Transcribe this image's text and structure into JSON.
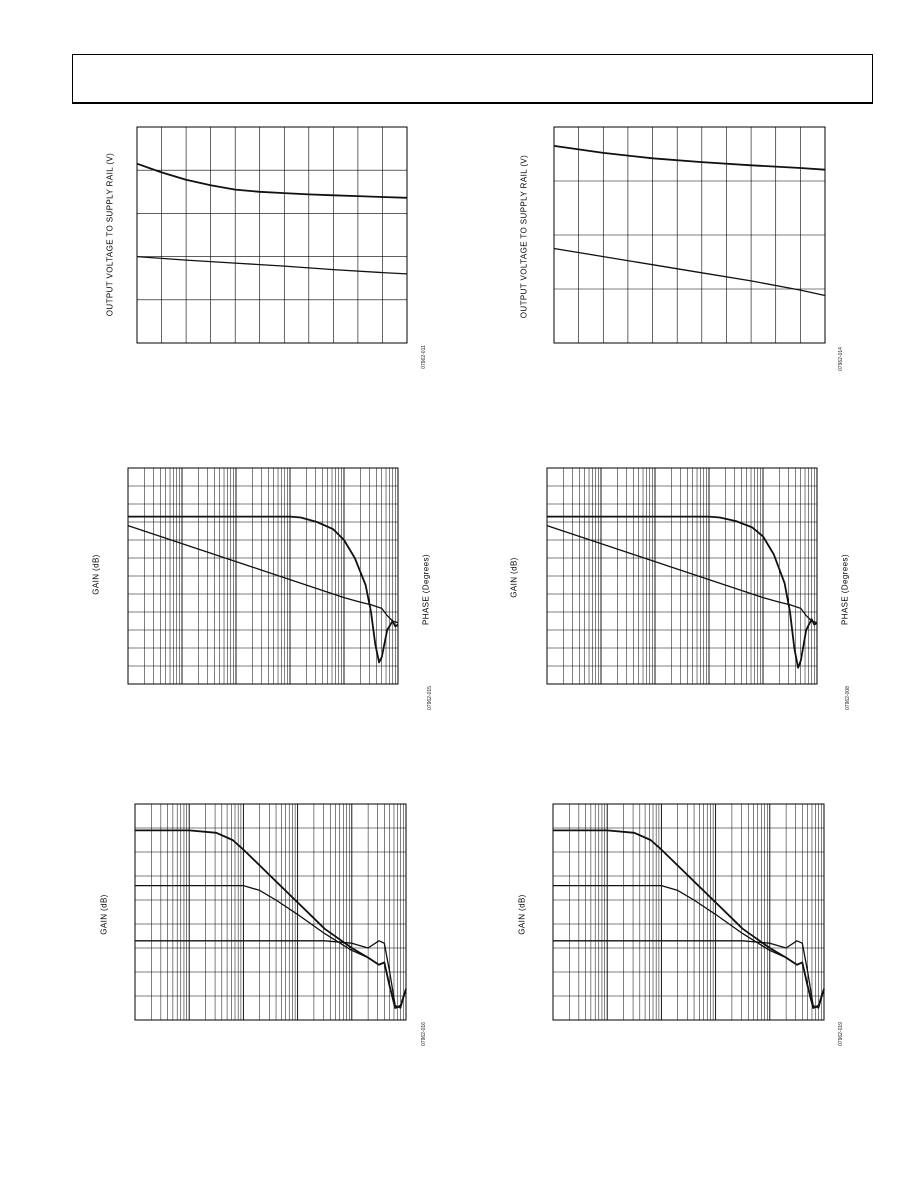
{
  "figures": [
    {
      "id": "fig-1",
      "ylabel": "OUTPUT VOLTAGE TO SUPPLY RAIL (V)",
      "ylabel2": "",
      "fig_id": "07962-011"
    },
    {
      "id": "fig-2",
      "ylabel": "OUTPUT VOLTAGE TO SUPPLY RAIL (V)",
      "ylabel2": "",
      "fig_id": "07962-014"
    },
    {
      "id": "fig-3",
      "ylabel": "GAIN (dB)",
      "ylabel2": "PHASE (Degrees)",
      "fig_id": "07962-015"
    },
    {
      "id": "fig-4",
      "ylabel": "GAIN (dB)",
      "ylabel2": "PHASE (Degrees)",
      "fig_id": "07962-008"
    },
    {
      "id": "fig-5",
      "ylabel": "GAIN (dB)",
      "ylabel2": "",
      "fig_id": "07962-016"
    },
    {
      "id": "fig-6",
      "ylabel": "GAIN (dB)",
      "ylabel2": "",
      "fig_id": "07962-019"
    }
  ],
  "chart_data": [
    {
      "type": "line",
      "xscale": "linear",
      "x_divisions": 11,
      "y_divisions": 5,
      "xlim": [
        0,
        11
      ],
      "ylim": [
        0,
        5
      ],
      "series": [
        {
          "x": [
            0,
            1,
            2,
            3,
            4,
            5,
            6,
            7,
            8,
            9,
            10,
            11
          ],
          "y": [
            4.15,
            3.95,
            3.78,
            3.65,
            3.55,
            3.5,
            3.47,
            3.44,
            3.42,
            3.4,
            3.38,
            3.36
          ]
        },
        {
          "x": [
            0,
            2,
            4,
            6,
            8,
            10,
            11
          ],
          "y": [
            2.0,
            1.92,
            1.85,
            1.78,
            1.7,
            1.63,
            1.6
          ]
        }
      ]
    },
    {
      "type": "line",
      "xscale": "linear",
      "x_divisions": 11,
      "y_divisions": 4,
      "xlim": [
        0,
        11
      ],
      "ylim": [
        0,
        4
      ],
      "series": [
        {
          "x": [
            0,
            2,
            4,
            6,
            8,
            10,
            11
          ],
          "y": [
            3.65,
            3.52,
            3.42,
            3.35,
            3.29,
            3.24,
            3.21
          ]
        },
        {
          "x": [
            0,
            2,
            4,
            6,
            8,
            10,
            11
          ],
          "y": [
            1.75,
            1.6,
            1.45,
            1.3,
            1.15,
            0.98,
            0.88
          ]
        }
      ]
    },
    {
      "type": "line",
      "xscale": "log",
      "decades": 5,
      "y_divisions": 12,
      "xlim": [
        0,
        5
      ],
      "ylim": [
        0,
        12
      ],
      "series": [
        {
          "x": [
            0,
            1,
            2,
            3,
            3.2,
            3.5,
            3.8,
            4.0,
            4.2,
            4.4,
            4.5,
            4.58,
            4.65,
            4.7,
            4.8,
            4.9,
            4.95,
            5.0
          ],
          "y": [
            9.3,
            9.3,
            9.3,
            9.3,
            9.25,
            9.0,
            8.6,
            8.0,
            7.0,
            5.5,
            4.0,
            2.2,
            1.2,
            1.5,
            3.0,
            3.5,
            3.2,
            3.3
          ]
        },
        {
          "x": [
            0,
            0.5,
            1,
            1.5,
            2,
            2.5,
            3,
            3.5,
            4,
            4.3,
            4.5,
            4.7,
            4.8,
            4.9,
            5.0
          ],
          "y": [
            8.8,
            8.3,
            7.8,
            7.3,
            6.8,
            6.3,
            5.8,
            5.3,
            4.8,
            4.55,
            4.4,
            4.2,
            3.8,
            3.5,
            3.4
          ]
        }
      ]
    },
    {
      "type": "line",
      "xscale": "log",
      "decades": 5,
      "y_divisions": 12,
      "xlim": [
        0,
        5
      ],
      "ylim": [
        0,
        12
      ],
      "series": [
        {
          "x": [
            0,
            1,
            2,
            3,
            3.2,
            3.5,
            3.8,
            4.0,
            4.2,
            4.4,
            4.5,
            4.58,
            4.65,
            4.7,
            4.8,
            4.9,
            4.95,
            5.0
          ],
          "y": [
            9.3,
            9.3,
            9.3,
            9.3,
            9.25,
            9.05,
            8.7,
            8.2,
            7.2,
            5.6,
            4.0,
            2.0,
            0.9,
            1.3,
            3.0,
            3.6,
            3.3,
            3.4
          ]
        },
        {
          "x": [
            0,
            0.5,
            1,
            1.5,
            2,
            2.5,
            3,
            3.5,
            4,
            4.3,
            4.5,
            4.7,
            4.8,
            4.9,
            5.0
          ],
          "y": [
            8.8,
            8.3,
            7.8,
            7.3,
            6.8,
            6.3,
            5.8,
            5.3,
            4.8,
            4.55,
            4.4,
            4.2,
            3.8,
            3.5,
            3.4
          ]
        }
      ]
    },
    {
      "type": "line",
      "xscale": "log",
      "decades": 5,
      "y_divisions": 9,
      "xlim": [
        0,
        5
      ],
      "ylim": [
        0,
        9
      ],
      "series": [
        {
          "x": [
            0,
            1,
            1.5,
            1.8,
            2.0,
            2.5,
            3.0,
            3.5,
            4.0,
            4.3,
            4.5,
            4.6,
            4.7,
            4.8,
            4.9,
            5.0
          ],
          "y": [
            7.9,
            7.9,
            7.8,
            7.5,
            7.1,
            6.0,
            4.9,
            3.8,
            3.0,
            2.6,
            2.3,
            2.4,
            1.4,
            0.5,
            0.6,
            1.3
          ]
        },
        {
          "x": [
            0,
            1,
            2.0,
            2.3,
            2.6,
            3.0,
            3.5,
            4.0,
            4.3,
            4.5,
            4.6,
            4.7,
            4.8,
            4.9,
            5.0
          ],
          "y": [
            5.6,
            5.6,
            5.6,
            5.4,
            5.0,
            4.4,
            3.6,
            2.9,
            2.6,
            2.3,
            2.4,
            1.4,
            0.5,
            0.6,
            1.3
          ]
        },
        {
          "x": [
            0,
            1,
            2,
            3,
            3.5,
            4.0,
            4.3,
            4.5,
            4.6,
            4.7,
            4.8,
            4.9,
            5.0
          ],
          "y": [
            3.3,
            3.3,
            3.3,
            3.3,
            3.3,
            3.2,
            3.0,
            3.3,
            3.2,
            2.0,
            0.6,
            0.5,
            1.3
          ]
        }
      ]
    },
    {
      "type": "line",
      "xscale": "log",
      "decades": 5,
      "y_divisions": 9,
      "xlim": [
        0,
        5
      ],
      "ylim": [
        0,
        9
      ],
      "series": [
        {
          "x": [
            0,
            1,
            1.5,
            1.8,
            2.0,
            2.5,
            3.0,
            3.5,
            4.0,
            4.3,
            4.5,
            4.6,
            4.7,
            4.8,
            4.9,
            5.0
          ],
          "y": [
            7.9,
            7.9,
            7.8,
            7.5,
            7.1,
            6.0,
            4.9,
            3.8,
            3.0,
            2.6,
            2.3,
            2.4,
            1.4,
            0.5,
            0.6,
            1.3
          ]
        },
        {
          "x": [
            0,
            1,
            2.0,
            2.3,
            2.6,
            3.0,
            3.5,
            4.0,
            4.3,
            4.5,
            4.6,
            4.7,
            4.8,
            4.9,
            5.0
          ],
          "y": [
            5.6,
            5.6,
            5.6,
            5.4,
            5.0,
            4.4,
            3.6,
            2.9,
            2.6,
            2.3,
            2.4,
            1.4,
            0.5,
            0.6,
            1.3
          ]
        },
        {
          "x": [
            0,
            1,
            2,
            3,
            3.5,
            4.0,
            4.3,
            4.5,
            4.6,
            4.7,
            4.8,
            4.9,
            5.0
          ],
          "y": [
            3.3,
            3.3,
            3.3,
            3.3,
            3.3,
            3.2,
            3.0,
            3.3,
            3.2,
            2.0,
            0.6,
            0.5,
            1.3
          ]
        }
      ]
    }
  ]
}
